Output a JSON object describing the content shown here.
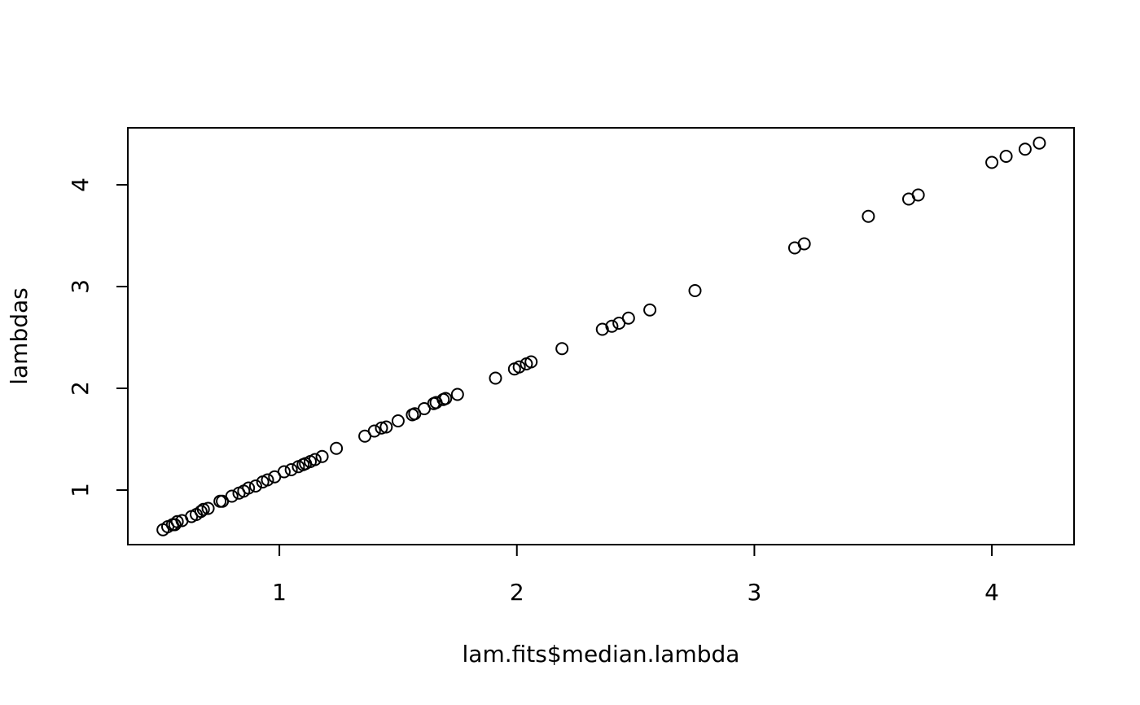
{
  "chart_data": {
    "type": "scatter",
    "xlabel": "lam.fits$median.lambda",
    "ylabel": "lambdas",
    "color": "#000000",
    "xlim": [
      0.362,
      4.346
    ],
    "ylim": [
      0.464,
      4.56
    ],
    "xticks": [
      1,
      2,
      3,
      4
    ],
    "yticks": [
      1,
      2,
      3,
      4
    ],
    "series": [
      {
        "name": "lambdas",
        "x": [
          0.51,
          0.53,
          0.55,
          0.56,
          0.57,
          0.59,
          0.63,
          0.65,
          0.67,
          0.68,
          0.7,
          0.75,
          0.76,
          0.8,
          0.83,
          0.85,
          0.87,
          0.9,
          0.93,
          0.95,
          0.98,
          1.02,
          1.05,
          1.08,
          1.1,
          1.11,
          1.13,
          1.15,
          1.18,
          1.24,
          1.36,
          1.4,
          1.43,
          1.45,
          1.5,
          1.56,
          1.57,
          1.61,
          1.65,
          1.66,
          1.69,
          1.7,
          1.75,
          1.91,
          1.99,
          2.01,
          2.04,
          2.06,
          2.19,
          2.36,
          2.4,
          2.43,
          2.47,
          2.56,
          2.75,
          3.17,
          3.21,
          3.48,
          3.65,
          3.69,
          4.0,
          4.06,
          4.14,
          4.2
        ],
        "values": [
          0.61,
          0.64,
          0.66,
          0.66,
          0.69,
          0.7,
          0.74,
          0.76,
          0.79,
          0.81,
          0.82,
          0.89,
          0.89,
          0.94,
          0.97,
          0.99,
          1.02,
          1.04,
          1.08,
          1.1,
          1.13,
          1.18,
          1.2,
          1.23,
          1.25,
          1.26,
          1.28,
          1.3,
          1.33,
          1.41,
          1.53,
          1.58,
          1.61,
          1.62,
          1.68,
          1.74,
          1.75,
          1.8,
          1.85,
          1.86,
          1.89,
          1.9,
          1.94,
          2.1,
          2.19,
          2.21,
          2.24,
          2.26,
          2.39,
          2.58,
          2.61,
          2.64,
          2.69,
          2.77,
          2.96,
          3.38,
          3.42,
          3.69,
          3.86,
          3.9,
          4.22,
          4.28,
          4.35,
          4.41
        ]
      }
    ]
  }
}
